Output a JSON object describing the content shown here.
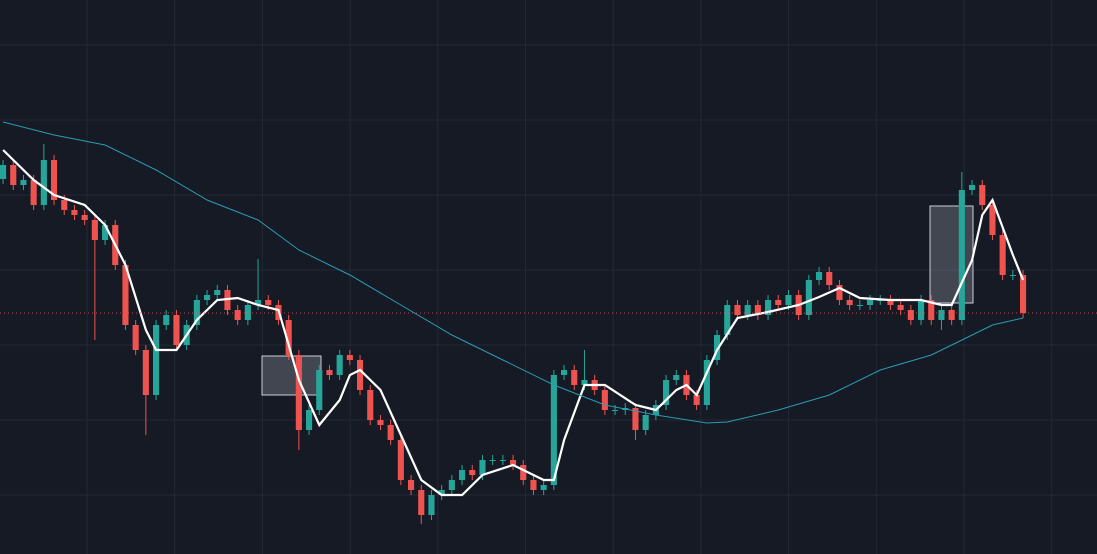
{
  "chart_data": {
    "type": "candlestick",
    "xlim": [
      -0.3,
      107.25
    ],
    "ylim": [
      0,
      554
    ],
    "grid": true,
    "background": "#161a25",
    "up_color": "#26a69a",
    "down_color": "#ef5350",
    "open": [
      375,
      389,
      369,
      374,
      349,
      394,
      354,
      344,
      339,
      334,
      314,
      329,
      289,
      229,
      204,
      159,
      229,
      239,
      209,
      229,
      254,
      259,
      264,
      244,
      234,
      249,
      254,
      249,
      234,
      199,
      124,
      144,
      184,
      179,
      199,
      194,
      164,
      134,
      129,
      114,
      74,
      64,
      39,
      59,
      64,
      74,
      84,
      79,
      94,
      94,
      94,
      89,
      74,
      64,
      69,
      179,
      184,
      169,
      174,
      164,
      144,
      144,
      146,
      124,
      139,
      149,
      174,
      179,
      159,
      149,
      194,
      219,
      249,
      239,
      249,
      239,
      254,
      249,
      259,
      239,
      274,
      282,
      269,
      254,
      249,
      249,
      254,
      254,
      249,
      244,
      234,
      254,
      234,
      244,
      234,
      364,
      369,
      349,
      319,
      279,
      279
    ],
    "high": [
      394,
      394,
      379,
      379,
      410,
      399,
      359,
      349,
      344,
      339,
      334,
      334,
      294,
      234,
      209,
      234,
      244,
      244,
      234,
      259,
      264,
      269,
      269,
      249,
      254,
      295,
      259,
      254,
      239,
      204,
      149,
      189,
      189,
      204,
      204,
      199,
      169,
      139,
      134,
      119,
      79,
      69,
      64,
      69,
      79,
      89,
      89,
      99,
      99,
      99,
      99,
      94,
      79,
      74,
      184,
      189,
      189,
      204,
      179,
      169,
      149,
      151,
      151,
      144,
      154,
      179,
      184,
      184,
      164,
      199,
      224,
      254,
      254,
      254,
      254,
      259,
      259,
      264,
      264,
      279,
      287,
      287,
      274,
      259,
      254,
      259,
      259,
      259,
      254,
      249,
      259,
      259,
      249,
      249,
      382,
      374,
      374,
      354,
      324,
      284,
      284
    ],
    "low": [
      370,
      364,
      364,
      344,
      344,
      349,
      339,
      334,
      329,
      214,
      309,
      284,
      224,
      199,
      119,
      154,
      224,
      204,
      204,
      224,
      249,
      254,
      239,
      229,
      229,
      244,
      244,
      229,
      194,
      104,
      119,
      139,
      174,
      174,
      189,
      159,
      129,
      124,
      109,
      69,
      59,
      30,
      34,
      54,
      59,
      69,
      74,
      74,
      89,
      89,
      84,
      69,
      59,
      59,
      64,
      174,
      164,
      164,
      159,
      139,
      139,
      139,
      114,
      119,
      134,
      144,
      169,
      154,
      144,
      144,
      189,
      214,
      234,
      234,
      234,
      234,
      244,
      244,
      234,
      234,
      269,
      264,
      249,
      244,
      244,
      244,
      249,
      244,
      239,
      229,
      229,
      229,
      224,
      229,
      229,
      359,
      344,
      314,
      274,
      274,
      236
    ],
    "close": [
      389,
      369,
      374,
      349,
      394,
      354,
      344,
      339,
      334,
      314,
      329,
      289,
      229,
      204,
      159,
      229,
      239,
      209,
      229,
      254,
      259,
      264,
      244,
      234,
      249,
      254,
      249,
      234,
      199,
      124,
      144,
      184,
      179,
      199,
      194,
      164,
      134,
      129,
      114,
      74,
      64,
      39,
      59,
      64,
      74,
      84,
      79,
      94,
      94,
      94,
      89,
      74,
      64,
      69,
      179,
      184,
      169,
      174,
      164,
      144,
      144,
      146,
      124,
      139,
      149,
      174,
      179,
      159,
      149,
      194,
      219,
      249,
      239,
      249,
      239,
      254,
      249,
      259,
      239,
      274,
      282,
      269,
      254,
      249,
      249,
      254,
      254,
      249,
      244,
      234,
      254,
      234,
      244,
      234,
      364,
      369,
      349,
      319,
      279,
      279,
      241
    ],
    "series": [
      {
        "color": "#ffffff",
        "x": [
          0,
          3,
          5,
          8,
          10,
          12,
          14,
          15,
          17,
          19,
          21,
          23,
          25,
          27,
          29,
          31,
          33,
          34,
          35,
          37,
          39,
          41,
          43,
          45,
          47,
          50,
          53,
          54,
          55,
          57,
          59,
          62,
          64,
          66,
          67,
          68,
          70,
          72,
          75,
          78,
          80,
          82,
          84,
          87,
          90,
          92,
          93,
          95,
          96,
          97,
          99,
          100
        ],
        "values": [
          404,
          374,
          359,
          349,
          329,
          289,
          224,
          204,
          204,
          234,
          254,
          256,
          249,
          244,
          174,
          129,
          154,
          179,
          184,
          164,
          119,
          74,
          59,
          59,
          79,
          89,
          74,
          74,
          114,
          169,
          169,
          149,
          144,
          164,
          169,
          159,
          204,
          236,
          242,
          249,
          257,
          266,
          256,
          254,
          254,
          249,
          249,
          294,
          339,
          354,
          299,
          274
        ]
      },
      {
        "color": "#2a9bb3",
        "x": [
          0,
          5,
          10,
          15,
          20,
          25,
          29,
          34,
          39,
          44,
          49,
          54,
          59,
          64,
          69,
          71,
          76,
          81,
          86,
          91,
          94,
          97,
          100
        ],
        "values": [
          432,
          419,
          409,
          384,
          354,
          334,
          304,
          279,
          249,
          219,
          194,
          169,
          149,
          139,
          131,
          132,
          144,
          159,
          184,
          199,
          214,
          229,
          236
        ]
      }
    ]
  }
}
